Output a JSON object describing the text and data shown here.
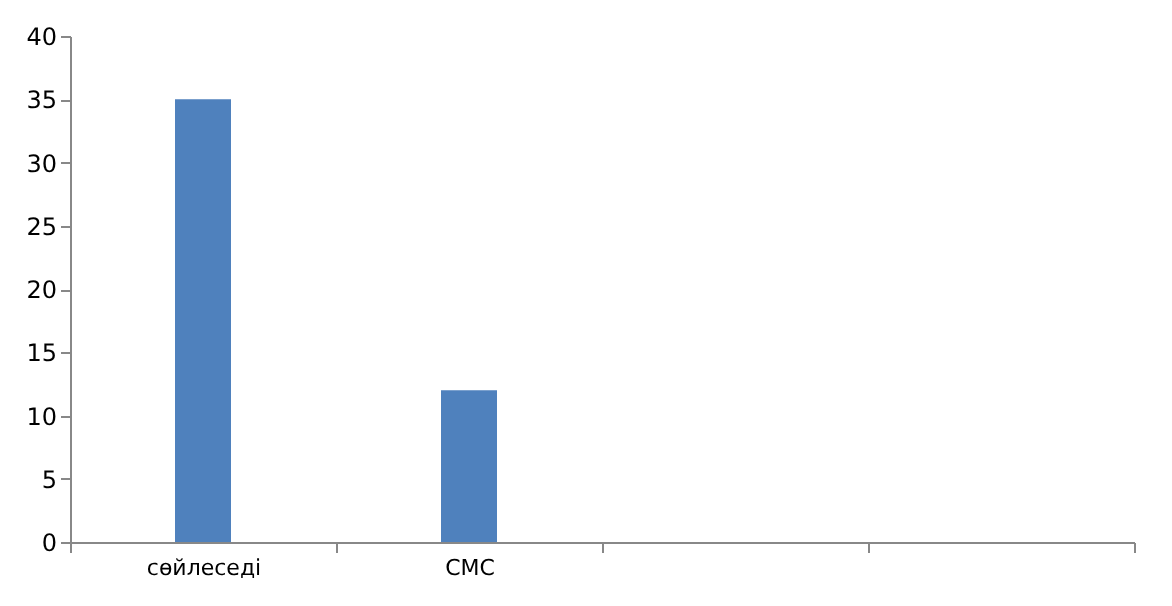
{
  "chart_data": {
    "type": "bar",
    "categories": [
      "сөйлеседі",
      "СМС",
      null,
      null
    ],
    "values": [
      35,
      12,
      null,
      null
    ],
    "color": "#4f81bd",
    "ylim": [
      0,
      40
    ],
    "yticks": [
      0,
      5,
      10,
      15,
      20,
      25,
      30,
      35,
      40
    ],
    "grid": false
  }
}
